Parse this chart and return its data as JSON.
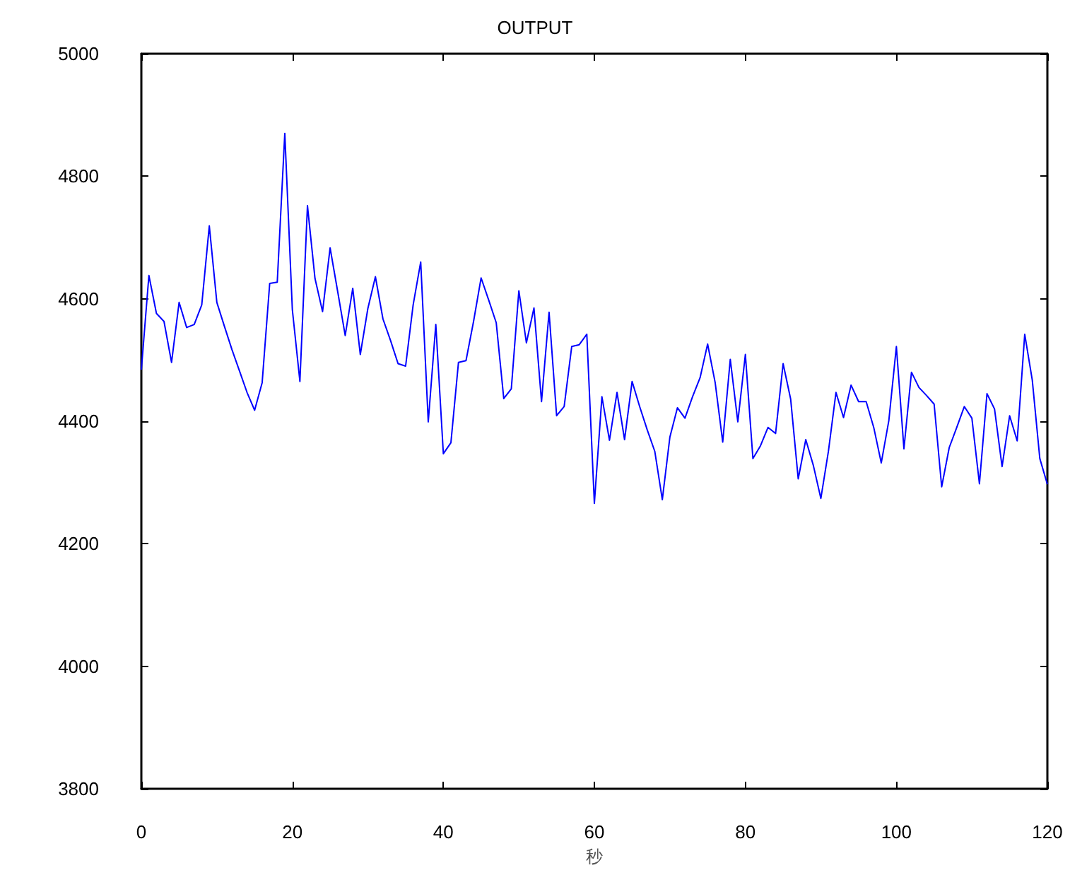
{
  "chart_data": {
    "type": "line",
    "title": "OUTPUT",
    "xlabel": "秒",
    "x": [
      0,
      1,
      2,
      3,
      4,
      5,
      6,
      7,
      8,
      9,
      10,
      11,
      12,
      13,
      14,
      15,
      16,
      17,
      18,
      19,
      20,
      21,
      22,
      23,
      24,
      25,
      26,
      27,
      28,
      29,
      30,
      31,
      32,
      33,
      34,
      35,
      36,
      37,
      38,
      39,
      40,
      41,
      42,
      43,
      44,
      45,
      46,
      47,
      48,
      49,
      50,
      51,
      52,
      53,
      54,
      55,
      56,
      57,
      58,
      59,
      60,
      61,
      62,
      63,
      64,
      65,
      66,
      67,
      68,
      69,
      70,
      71,
      72,
      73,
      74,
      75,
      76,
      77,
      78,
      79,
      80,
      81,
      82,
      83,
      84,
      85,
      86,
      87,
      88,
      89,
      90,
      91,
      92,
      93,
      94,
      95,
      96,
      97,
      98,
      99,
      100,
      101,
      102,
      103,
      104,
      105,
      106,
      107,
      108,
      109,
      110,
      111,
      112,
      113,
      114,
      115,
      116,
      117,
      118,
      119,
      120
    ],
    "series": [
      {
        "color": "#0000ff",
        "values": [
          4484,
          4638,
          4576,
          4563,
          4496,
          4594,
          4553,
          4558,
          4590,
          4719,
          4594,
          4555,
          4517,
          4482,
          4447,
          4418,
          4463,
          4625,
          4627,
          4870,
          4582,
          4465,
          4752,
          4633,
          4579,
          4683,
          4612,
          4540,
          4617,
          4509,
          4584,
          4636,
          4567,
          4532,
          4494,
          4490,
          4590,
          4660,
          4399,
          4558,
          4347,
          4365,
          4496,
          4499,
          4563,
          4634,
          4598,
          4561,
          4437,
          4453,
          4613,
          4528,
          4585,
          4432,
          4578,
          4409,
          4424,
          4522,
          4525,
          4542,
          4266,
          4440,
          4369,
          4447,
          4370,
          4465,
          4424,
          4386,
          4351,
          4272,
          4374,
          4422,
          4405,
          4440,
          4471,
          4526,
          4463,
          4366,
          4501,
          4399,
          4509,
          4339,
          4360,
          4390,
          4380,
          4494,
          4436,
          4306,
          4370,
          4328,
          4274,
          4351,
          4447,
          4406,
          4459,
          4432,
          4432,
          4390,
          4332,
          4401,
          4522,
          4355,
          4480,
          4455,
          4442,
          4428,
          4293,
          4357,
          4390,
          4424,
          4405,
          4298,
          4445,
          4420,
          4326,
          4409,
          4368,
          4542,
          4467,
          4339,
          4297
        ]
      }
    ],
    "xlim": [
      0,
      120
    ],
    "xticks": [
      0,
      20,
      40,
      60,
      80,
      100,
      120
    ],
    "ylim": [
      3800,
      5000
    ],
    "yticks": [
      3800,
      4000,
      4200,
      4400,
      4600,
      4800,
      5000
    ],
    "marker": "none",
    "line_style": "solid"
  }
}
